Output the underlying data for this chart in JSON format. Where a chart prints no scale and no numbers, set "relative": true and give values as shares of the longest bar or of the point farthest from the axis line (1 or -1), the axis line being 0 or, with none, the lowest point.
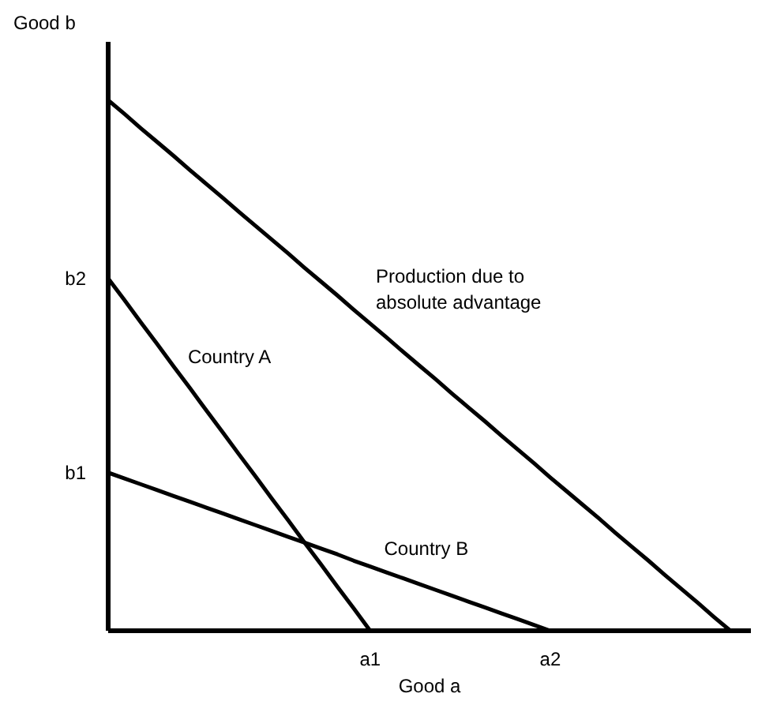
{
  "chart_data": {
    "type": "line",
    "relative": true,
    "xlabel": "Good a",
    "ylabel": "Good b",
    "categories": [
      null,
      null,
      null,
      null,
      null,
      null,
      null,
      null,
      null,
      null,
      null,
      null,
      null,
      null,
      null,
      null,
      "a1",
      null,
      null,
      null,
      null,
      null,
      null,
      null,
      null,
      null,
      null,
      "a2",
      null,
      null,
      null,
      null,
      null,
      null,
      null,
      null,
      null,
      null,
      null
    ],
    "series": [
      {
        "name": "Production due to\nabsolute advantage",
        "color": "#000000",
        "values": [
          1,
          0.974,
          0.947,
          0.921,
          0.895,
          0.868,
          0.842,
          0.816,
          0.789,
          0.763,
          0.737,
          0.711,
          0.684,
          0.658,
          0.632,
          0.605,
          0.579,
          0.553,
          0.526,
          0.5,
          0.474,
          0.447,
          0.421,
          0.395,
          0.368,
          0.342,
          0.316,
          0.289,
          0.263,
          0.237,
          0.211,
          0.184,
          0.158,
          0.132,
          0.105,
          0.079,
          0.053,
          0.026,
          0
        ]
      },
      {
        "name": "Country A",
        "color": "#000000",
        "values": [
          0.664,
          0.623,
          0.581,
          0.54,
          0.498,
          0.457,
          0.415,
          0.374,
          0.332,
          0.291,
          0.249,
          0.208,
          0.166,
          0.125,
          0.083,
          0.042,
          0,
          null,
          null,
          null,
          null,
          null,
          null,
          null,
          null,
          null,
          null,
          null,
          null,
          null,
          null,
          null,
          null,
          null,
          null,
          null,
          null,
          null,
          null
        ]
      },
      {
        "name": "Country B",
        "color": "#000000",
        "values": [
          0.298,
          0.287,
          0.276,
          0.265,
          0.254,
          0.243,
          0.232,
          0.221,
          0.21,
          0.199,
          0.188,
          0.177,
          0.166,
          0.155,
          0.144,
          0.132,
          0.121,
          0.11,
          0.099,
          0.088,
          0.077,
          0.066,
          0.055,
          0.044,
          0.033,
          0.022,
          0.011,
          0,
          null,
          null,
          null,
          null,
          null,
          null,
          null,
          null,
          null,
          null,
          null
        ]
      }
    ],
    "annotations": [
      "b2",
      "b1"
    ],
    "grid": false,
    "marker": "none",
    "line_style": "solid"
  }
}
